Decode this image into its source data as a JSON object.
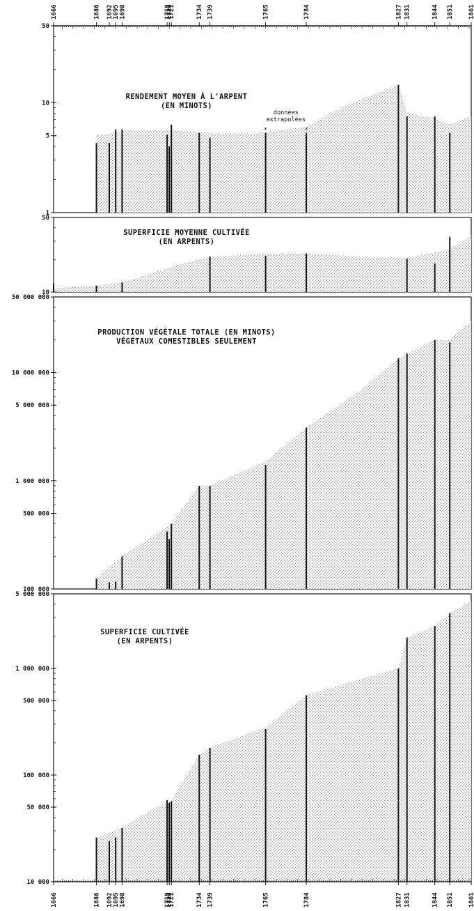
{
  "colors": {
    "ink": "#111111",
    "stipple": "#a9a9a9",
    "background": "#ffffff"
  },
  "year_axis": {
    "range": [
      1666,
      1861
    ],
    "major_ticks": [
      1666,
      1686,
      1692,
      1695,
      1698,
      1719,
      1720,
      1721,
      1734,
      1739,
      1765,
      1784,
      1827,
      1831,
      1844,
      1851,
      1861
    ],
    "top_labels": [
      "1666",
      "1686",
      "1692",
      "1695",
      "1698",
      "1719",
      "1720",
      "1721",
      "1734",
      "1739",
      "1765",
      "1784",
      "1827",
      "1831",
      "1844",
      "1851",
      "1861"
    ],
    "bottom_labels": [
      "1666",
      "1686",
      "1692",
      "1695",
      "1698",
      "1719",
      "1720",
      "1721",
      "1734",
      "1739",
      "1765",
      "1784",
      "1827",
      "1831",
      "1844",
      "1851",
      "1861"
    ]
  },
  "chart_data": [
    {
      "type": "bar",
      "title_lines": [
        "RENDEMENT MOYEN À L'ARPENT",
        "(EN MINOTS)"
      ],
      "scale": "log",
      "ylim": [
        1,
        50
      ],
      "y_ticks": [
        {
          "v": 50,
          "label": "50"
        },
        {
          "v": 10,
          "label": "10"
        },
        {
          "v": 5,
          "label": "5"
        },
        {
          "v": 1,
          "label": "1"
        }
      ],
      "annotation": {
        "lines": [
          "données",
          "extrapolées"
        ],
        "marked_years": [
          1765,
          1784
        ]
      },
      "bars": [
        {
          "year": 1686,
          "value": 4.3
        },
        {
          "year": 1692,
          "value": 4.3
        },
        {
          "year": 1695,
          "value": 5.7
        },
        {
          "year": 1698,
          "value": 5.7
        },
        {
          "year": 1719,
          "value": 5.1
        },
        {
          "year": 1720,
          "value": 4.0
        },
        {
          "year": 1721,
          "value": 6.3
        },
        {
          "year": 1734,
          "value": 5.3
        },
        {
          "year": 1739,
          "value": 4.8
        },
        {
          "year": 1765,
          "value": 5.3
        },
        {
          "year": 1784,
          "value": 5.3
        },
        {
          "year": 1827,
          "value": 14.5
        },
        {
          "year": 1831,
          "value": 7.5
        },
        {
          "year": 1844,
          "value": 7.5
        },
        {
          "year": 1851,
          "value": 5.3
        }
      ],
      "trend": [
        [
          1686,
          5.0
        ],
        [
          1700,
          5.6
        ],
        [
          1720,
          5.6
        ],
        [
          1740,
          5.3
        ],
        [
          1760,
          5.3
        ],
        [
          1784,
          6.0
        ],
        [
          1800,
          9.0
        ],
        [
          1827,
          14.5
        ],
        [
          1831,
          8.0
        ],
        [
          1844,
          7.2
        ],
        [
          1851,
          6.3
        ],
        [
          1861,
          7.5
        ]
      ]
    },
    {
      "type": "bar",
      "title_lines": [
        "SUPERFICIE MOYENNE CULTIVÉE",
        "(EN ARPENTS)"
      ],
      "scale": "log",
      "ylim": [
        10,
        50
      ],
      "y_ticks": [
        {
          "v": 50,
          "label": "50"
        },
        {
          "v": 10,
          "label": "10"
        }
      ],
      "bars": [
        {
          "year": 1666,
          "value": 12.0
        },
        {
          "year": 1686,
          "value": 11.5
        },
        {
          "year": 1698,
          "value": 12.3
        },
        {
          "year": 1739,
          "value": 21.5
        },
        {
          "year": 1765,
          "value": 21.8
        },
        {
          "year": 1784,
          "value": 23.0
        },
        {
          "year": 1831,
          "value": 20.5
        },
        {
          "year": 1844,
          "value": 18.5
        },
        {
          "year": 1851,
          "value": 33.0
        }
      ],
      "trend": [
        [
          1666,
          10.8
        ],
        [
          1686,
          11.5
        ],
        [
          1698,
          12.3
        ],
        [
          1720,
          17.0
        ],
        [
          1739,
          21.5
        ],
        [
          1765,
          22.8
        ],
        [
          1784,
          23.0
        ],
        [
          1810,
          21.5
        ],
        [
          1831,
          21.0
        ],
        [
          1851,
          25.0
        ],
        [
          1861,
          34.0
        ]
      ]
    },
    {
      "type": "bar",
      "title_lines": [
        "PRODUCTION VÉGÉTALE TOTALE (EN MINOTS)",
        "VÉGÉTAUX COMESTIBLES SEULEMENT"
      ],
      "scale": "log",
      "ylim": [
        100000,
        50000000
      ],
      "y_ticks": [
        {
          "v": 50000000,
          "label": "50 000 000"
        },
        {
          "v": 10000000,
          "label": "10 000 000"
        },
        {
          "v": 5000000,
          "label": "5 000 000"
        },
        {
          "v": 1000000,
          "label": "1 000 000"
        },
        {
          "v": 500000,
          "label": "500 000"
        },
        {
          "v": 100000,
          "label": "100 000"
        }
      ],
      "bars": [
        {
          "year": 1686,
          "value": 125000
        },
        {
          "year": 1692,
          "value": 115000
        },
        {
          "year": 1695,
          "value": 117000
        },
        {
          "year": 1698,
          "value": 200000
        },
        {
          "year": 1719,
          "value": 340000
        },
        {
          "year": 1720,
          "value": 290000
        },
        {
          "year": 1721,
          "value": 400000
        },
        {
          "year": 1734,
          "value": 900000
        },
        {
          "year": 1739,
          "value": 900000
        },
        {
          "year": 1765,
          "value": 1400000
        },
        {
          "year": 1784,
          "value": 3100000
        },
        {
          "year": 1827,
          "value": 13500000
        },
        {
          "year": 1831,
          "value": 15000000
        },
        {
          "year": 1844,
          "value": 20000000
        },
        {
          "year": 1851,
          "value": 19000000
        }
      ],
      "trend": [
        [
          1686,
          125000
        ],
        [
          1698,
          200000
        ],
        [
          1721,
          400000
        ],
        [
          1734,
          900000
        ],
        [
          1739,
          900000
        ],
        [
          1765,
          1500000
        ],
        [
          1784,
          3100000
        ],
        [
          1810,
          7000000
        ],
        [
          1827,
          13500000
        ],
        [
          1844,
          20000000
        ],
        [
          1851,
          20000000
        ],
        [
          1861,
          30000000
        ]
      ]
    },
    {
      "type": "bar",
      "title_lines": [
        "SUPERFICIE CULTIVÉE",
        "(EN ARPENTS)"
      ],
      "scale": "log",
      "ylim": [
        10000,
        5000000
      ],
      "y_ticks": [
        {
          "v": 5000000,
          "label": "5 000 000"
        },
        {
          "v": 1000000,
          "label": "1 000 000"
        },
        {
          "v": 500000,
          "label": "500 000"
        },
        {
          "v": 100000,
          "label": "100 000"
        },
        {
          "v": 50000,
          "label": "50 000"
        },
        {
          "v": 10000,
          "label": "10 000"
        }
      ],
      "bars": [
        {
          "year": 1686,
          "value": 26000
        },
        {
          "year": 1692,
          "value": 24000
        },
        {
          "year": 1695,
          "value": 26000
        },
        {
          "year": 1698,
          "value": 32000
        },
        {
          "year": 1719,
          "value": 58000
        },
        {
          "year": 1720,
          "value": 55000
        },
        {
          "year": 1721,
          "value": 57000
        },
        {
          "year": 1734,
          "value": 155000
        },
        {
          "year": 1739,
          "value": 180000
        },
        {
          "year": 1765,
          "value": 270000
        },
        {
          "year": 1784,
          "value": 560000
        },
        {
          "year": 1827,
          "value": 1000000
        },
        {
          "year": 1831,
          "value": 1950000
        },
        {
          "year": 1844,
          "value": 2500000
        },
        {
          "year": 1851,
          "value": 3300000
        }
      ],
      "trend": [
        [
          1686,
          26000
        ],
        [
          1698,
          32000
        ],
        [
          1710,
          45000
        ],
        [
          1721,
          58000
        ],
        [
          1734,
          155000
        ],
        [
          1739,
          180000
        ],
        [
          1765,
          280000
        ],
        [
          1784,
          560000
        ],
        [
          1800,
          700000
        ],
        [
          1827,
          1000000
        ],
        [
          1831,
          1950000
        ],
        [
          1844,
          2500000
        ],
        [
          1851,
          3300000
        ],
        [
          1861,
          4300000
        ]
      ]
    }
  ]
}
